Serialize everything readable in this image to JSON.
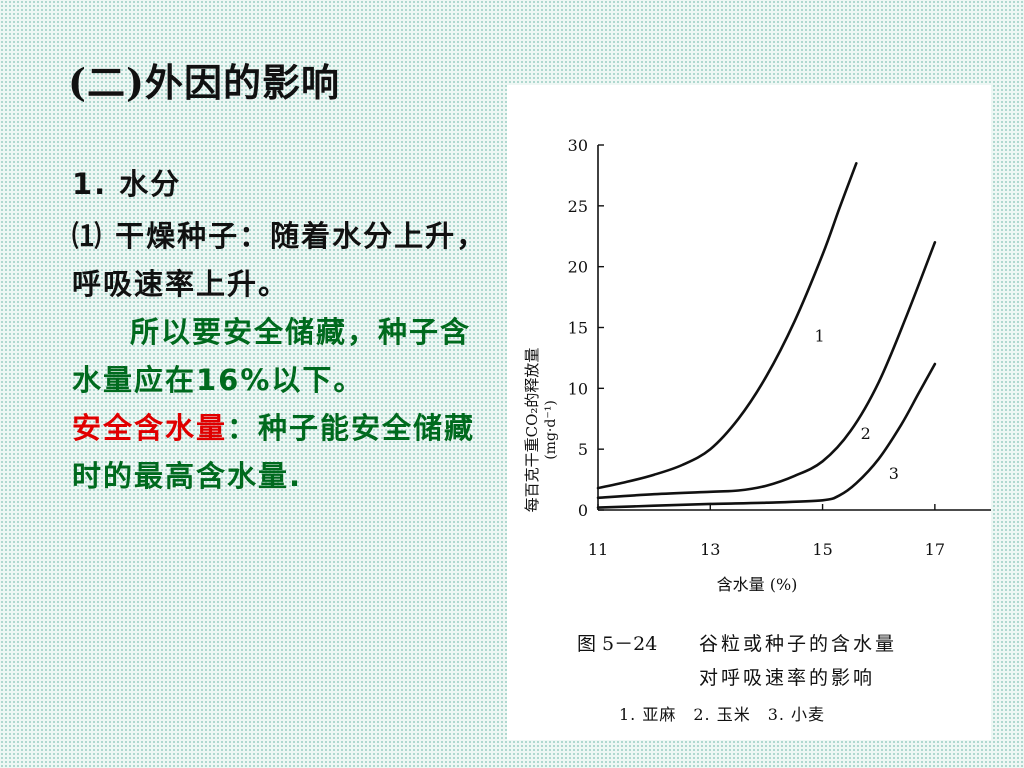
{
  "slide": {
    "title": "(二)外因的影响",
    "section": "1. 水分",
    "point1": "⑴ 干燥种子：随着水分上升，呼吸速率上升。",
    "note": "所以要安全储藏，种子含水量应在16%以下。",
    "definition_term": "安全含水量",
    "definition_body": "：种子能安全储藏时的最高含水量.",
    "colors": {
      "green": "#006a1e",
      "red": "#e00000",
      "text": "#111111"
    }
  },
  "figure": {
    "caption_number": "图 5－24",
    "caption_title_line1": "谷粒或种子的含水量",
    "caption_title_line2": "对呼吸速率的影响",
    "caption_legend": "1. 亚麻　2. 玉米　3. 小麦"
  },
  "chart_data": {
    "type": "line",
    "xlabel": "含水量 (%)",
    "ylabel": "每百克干重CO₂的释放量",
    "ylabel_unit": "(mg·d⁻¹)",
    "xlim": [
      11,
      18
    ],
    "ylim": [
      0,
      30
    ],
    "xticks": [
      11,
      13,
      15,
      17
    ],
    "yticks": [
      0,
      5,
      10,
      15,
      20,
      25,
      30
    ],
    "grid": false,
    "series": [
      {
        "name": "1",
        "x": [
          11,
          11.5,
          12,
          12.5,
          13,
          13.5,
          14,
          14.5,
          15,
          15.3,
          15.6
        ],
        "y": [
          1.8,
          2.3,
          2.9,
          3.7,
          5,
          7.5,
          11,
          15.5,
          21,
          24.8,
          28.5
        ]
      },
      {
        "name": "2",
        "x": [
          11,
          12,
          13,
          13.5,
          14,
          14.5,
          15,
          15.5,
          16,
          16.5,
          17
        ],
        "y": [
          1,
          1.3,
          1.5,
          1.6,
          2,
          2.8,
          4,
          6.5,
          10.5,
          16,
          22
        ]
      },
      {
        "name": "3",
        "x": [
          11,
          12,
          13,
          14,
          15,
          15.3,
          15.6,
          16,
          16.4,
          16.7,
          17
        ],
        "y": [
          0.2,
          0.35,
          0.5,
          0.6,
          0.8,
          1.2,
          2.2,
          4.2,
          7,
          9.5,
          12
        ]
      }
    ]
  }
}
